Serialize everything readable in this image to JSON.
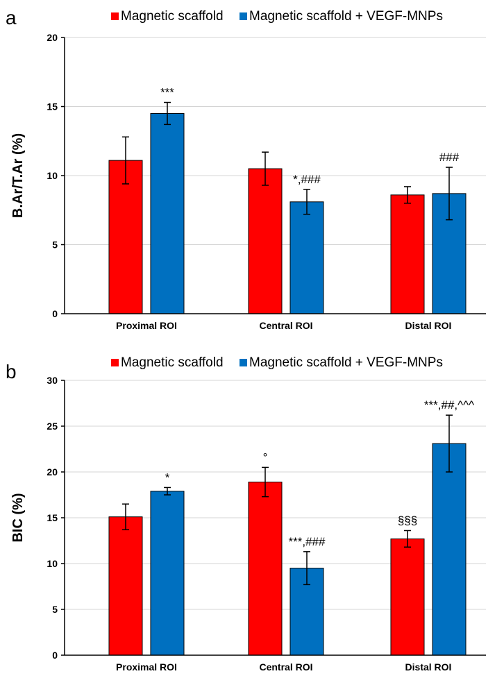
{
  "chart_data": [
    {
      "type": "bar",
      "panel": "a",
      "legend": "top",
      "grid": true,
      "categories": [
        "Proximal ROI",
        "Central ROI",
        "Distal ROI"
      ],
      "ylabel": "B.Ar/T.Ar (%)",
      "ylim": [
        0,
        20
      ],
      "yticks": [
        0,
        5,
        10,
        15,
        20
      ],
      "series": [
        {
          "name": "Magnetic scaffold",
          "color": "#ff0000",
          "values": [
            11.1,
            10.5,
            8.6
          ],
          "errors": [
            1.7,
            1.2,
            0.6
          ],
          "annotations": [
            "",
            "",
            ""
          ]
        },
        {
          "name": "Magnetic scaffold + VEGF-MNPs",
          "color": "#0070c0",
          "values": [
            14.5,
            8.1,
            8.7
          ],
          "errors": [
            0.8,
            0.9,
            1.9
          ],
          "annotations": [
            "***",
            "*,###",
            "###"
          ]
        }
      ]
    },
    {
      "type": "bar",
      "panel": "b",
      "legend": "top",
      "grid": true,
      "categories": [
        "Proximal ROI",
        "Central ROI",
        "Distal ROI"
      ],
      "ylabel": "BIC (%)",
      "ylim": [
        0,
        30
      ],
      "yticks": [
        0,
        5,
        10,
        15,
        20,
        25,
        30
      ],
      "series": [
        {
          "name": "Magnetic scaffold",
          "color": "#ff0000",
          "values": [
            15.1,
            18.9,
            12.7
          ],
          "errors": [
            1.4,
            1.6,
            0.9
          ],
          "annotations": [
            "",
            "°",
            "§§§"
          ]
        },
        {
          "name": "Magnetic scaffold + VEGF-MNPs",
          "color": "#0070c0",
          "values": [
            17.9,
            9.5,
            23.1
          ],
          "errors": [
            0.4,
            1.8,
            3.1
          ],
          "annotations": [
            "*",
            "***,###",
            "***,##,^^^"
          ]
        }
      ]
    }
  ]
}
